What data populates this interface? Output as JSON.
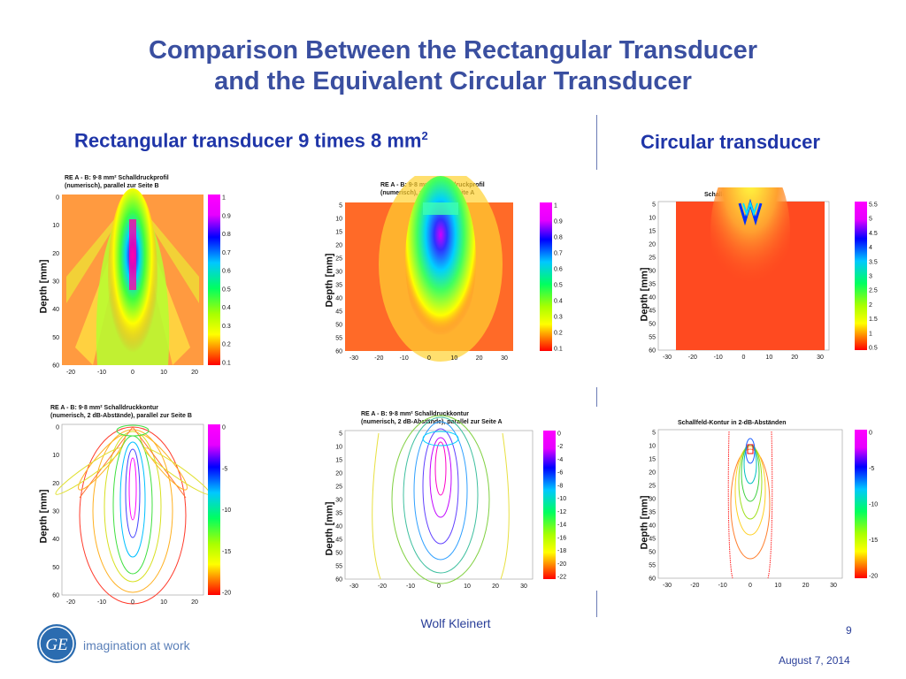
{
  "slide": {
    "title_line1": "Comparison Between the Rectangular Transducer",
    "title_line2": "and the Equivalent Circular Transducer",
    "left_heading": "Rectangular transducer 9 times 8 mm",
    "left_heading_sup": "2",
    "right_heading": "Circular transducer",
    "author": "Wolf Kleinert",
    "page_number": "9",
    "date": "August 7, 2014",
    "tagline": "imagination at work",
    "logo_text": "GE"
  },
  "panels": {
    "p1": {
      "title1": "RE A - B: 9·8 mm² Schalldruckprofil",
      "title2": "(numerisch), parallel zur Seite B",
      "ylabel": "Depth [mm]",
      "yticks": [
        "0",
        "10",
        "20",
        "30",
        "40",
        "50",
        "60"
      ],
      "xticks": [
        "-20",
        "-10",
        "0",
        "10",
        "20"
      ],
      "cbticks": [
        "1",
        "0.9",
        "0.8",
        "0.7",
        "0.6",
        "0.5",
        "0.4",
        "0.3",
        "0.2",
        "0.1"
      ]
    },
    "p2": {
      "title1": "RE A - B: 9·8 mm² Schalldruckprofil",
      "title2": "(numerisch), parallel zur Seite A",
      "ylabel": "Depth [mm]",
      "yticks": [
        "5",
        "10",
        "15",
        "20",
        "25",
        "30",
        "35",
        "40",
        "45",
        "50",
        "55",
        "60"
      ],
      "xticks": [
        "-30",
        "-20",
        "-10",
        "0",
        "10",
        "20",
        "30"
      ],
      "cbticks": [
        "1",
        "0.9",
        "0.8",
        "0.7",
        "0.6",
        "0.5",
        "0.4",
        "0.3",
        "0.2",
        "0.1"
      ]
    },
    "p3": {
      "title1": "Schalldruckprofil linear",
      "ylabel": "Depth [mm]",
      "yticks": [
        "5",
        "10",
        "15",
        "20",
        "25",
        "30",
        "35",
        "40",
        "45",
        "50",
        "55",
        "60"
      ],
      "xticks": [
        "-30",
        "-20",
        "-10",
        "0",
        "10",
        "20",
        "30"
      ],
      "cbticks": [
        "5.5",
        "5",
        "4.5",
        "4",
        "3.5",
        "3",
        "2.5",
        "2",
        "1.5",
        "1",
        "0.5"
      ]
    },
    "p4": {
      "title1": "RE A - B: 9·8 mm² Schalldruckkontur",
      "title2": "(numerisch, 2 dB-Abstände), parallel zur Seite B",
      "ylabel": "Depth [mm]",
      "yticks": [
        "0",
        "10",
        "20",
        "30",
        "40",
        "50",
        "60"
      ],
      "xticks": [
        "-20",
        "-10",
        "0",
        "10",
        "20"
      ],
      "cbticks": [
        "0",
        "-5",
        "-10",
        "-15",
        "-20"
      ]
    },
    "p5": {
      "title1": "RE A - B: 9·8 mm² Schalldruckkontur",
      "title2": "(numerisch, 2 dB-Abstände), parallel zur Seite A",
      "ylabel": "Depth [mm]",
      "yticks": [
        "5",
        "10",
        "15",
        "20",
        "25",
        "30",
        "35",
        "40",
        "45",
        "50",
        "55",
        "60"
      ],
      "xticks": [
        "-30",
        "-20",
        "-10",
        "0",
        "10",
        "20",
        "30"
      ],
      "cbticks": [
        "0",
        "-2",
        "-4",
        "-6",
        "-8",
        "-10",
        "-12",
        "-14",
        "-16",
        "-18",
        "-20",
        "-22"
      ]
    },
    "p6": {
      "title1": "Schallfeld-Kontur in 2-dB-Abständen",
      "ylabel": "Depth [mm]",
      "yticks": [
        "5",
        "10",
        "15",
        "20",
        "25",
        "30",
        "35",
        "40",
        "45",
        "50",
        "55",
        "60"
      ],
      "xticks": [
        "-30",
        "-20",
        "-10",
        "0",
        "10",
        "20",
        "30"
      ],
      "cbticks": [
        "0",
        "-5",
        "-10",
        "-15",
        "-20"
      ]
    }
  },
  "colors": {
    "title": "#3a4fa0",
    "heading": "#1f35a8",
    "accent": "#2a3f99"
  }
}
